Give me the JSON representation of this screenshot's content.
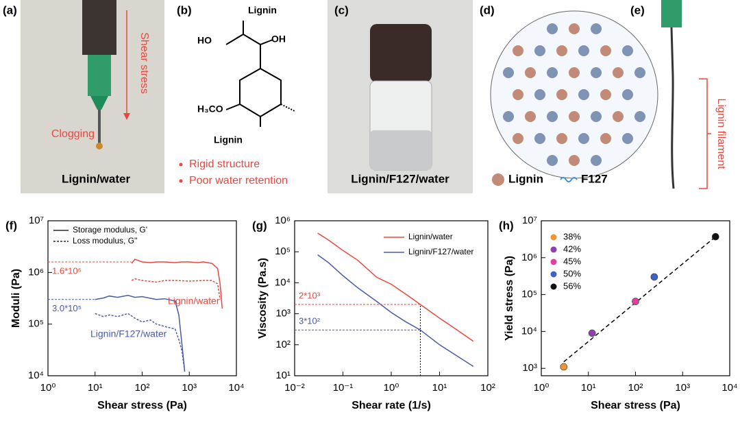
{
  "panels": {
    "a": {
      "label": "(a)",
      "arrow_text": "Shear stress",
      "note": "Clogging",
      "caption": "Lignin/water"
    },
    "b": {
      "label": "(b)",
      "groups": [
        "Lignin",
        "HO",
        "OH",
        "H₃CO",
        "Lignin"
      ],
      "bullets": [
        "Rigid structure",
        "Poor water retention"
      ]
    },
    "c": {
      "label": "(c)",
      "caption": "Lignin/F127/water"
    },
    "d": {
      "label": "(d)",
      "legend": [
        "Lignin",
        "F127"
      ]
    },
    "e": {
      "label": "(e)",
      "note": "Lignin filament"
    }
  },
  "chart_data": [
    {
      "type": "line",
      "panel": "(f)",
      "xlabel": "Shear stress (Pa)",
      "ylabel": "Moduli (Pa)",
      "log_x": true,
      "log_y": true,
      "xlim": [
        1,
        10000
      ],
      "ylim": [
        10000,
        10000000
      ],
      "xticks": [
        {
          "value": 1,
          "label": "10⁰"
        },
        {
          "value": 10,
          "label": "10¹"
        },
        {
          "value": 100,
          "label": "10²"
        },
        {
          "value": 1000,
          "label": "10³"
        },
        {
          "value": 10000,
          "label": "10⁴"
        }
      ],
      "yticks": [
        {
          "value": 10000,
          "label": "10⁴"
        },
        {
          "value": 100000,
          "label": "10⁵"
        },
        {
          "value": 1000000,
          "label": "10⁶"
        },
        {
          "value": 10000000,
          "label": "10⁷"
        }
      ],
      "legend": [
        {
          "name": "Storage modulus, G'",
          "style": "solid"
        },
        {
          "name": "Loss modulus, G''",
          "style": "dashed"
        }
      ],
      "annotations": [
        "Lignin/water",
        "Lignin/F127/water"
      ],
      "series": [
        {
          "color": "#e8473f",
          "style": "solid",
          "x": [
            60,
            70,
            100,
            150,
            200,
            300,
            500,
            700,
            1000,
            1500,
            2000,
            3000,
            4000,
            4500,
            5000
          ],
          "values": [
            1500000,
            1800000,
            1600000,
            1550000,
            1600000,
            1600000,
            1550000,
            1600000,
            1600000,
            1550000,
            1600000,
            1500000,
            1200000,
            600000,
            200000
          ]
        },
        {
          "color": "#e8473f",
          "style": "dashed",
          "x": [
            60,
            70,
            100,
            200,
            300,
            500,
            1000,
            2000,
            3000,
            4000,
            4500
          ],
          "values": [
            700000,
            750000,
            700000,
            650000,
            700000,
            700000,
            680000,
            700000,
            700000,
            600000,
            300000
          ]
        },
        {
          "color": "#4a5aa8",
          "style": "solid",
          "x": [
            10,
            15,
            20,
            30,
            50,
            70,
            100,
            200,
            300,
            500,
            600,
            700,
            800
          ],
          "values": [
            300000,
            320000,
            350000,
            330000,
            360000,
            330000,
            340000,
            300000,
            310000,
            280000,
            150000,
            40000,
            12000
          ]
        },
        {
          "color": "#4a5aa8",
          "style": "dashed",
          "x": [
            10,
            15,
            20,
            30,
            50,
            70,
            100,
            150,
            200,
            300,
            500,
            600,
            700,
            800
          ],
          "values": [
            160000,
            140000,
            150000,
            140000,
            160000,
            130000,
            110000,
            120000,
            100000,
            90000,
            80000,
            50000,
            30000,
            12000
          ]
        }
      ],
      "reference_lines": [
        {
          "value": 1600000,
          "label": "1.6*10⁶",
          "color": "#e8473f"
        },
        {
          "value": 300000,
          "label": "3.0*10⁵",
          "color": "#4a5aa8"
        }
      ]
    },
    {
      "type": "line",
      "panel": "(g)",
      "xlabel": "Shear rate (1/s)",
      "ylabel": "Viscosity (Pa.s)",
      "log_x": true,
      "log_y": true,
      "xlim": [
        0.01,
        100
      ],
      "ylim": [
        10,
        1000000
      ],
      "xticks": [
        {
          "value": 0.01,
          "label": "10⁻²"
        },
        {
          "value": 0.1,
          "label": "10⁻¹"
        },
        {
          "value": 1,
          "label": "10⁰"
        },
        {
          "value": 10,
          "label": "10¹"
        },
        {
          "value": 100,
          "label": "10²"
        }
      ],
      "yticks": [
        {
          "value": 10,
          "label": "10¹"
        },
        {
          "value": 100,
          "label": "10²"
        },
        {
          "value": 1000,
          "label": "10³"
        },
        {
          "value": 10000,
          "label": "10⁴"
        },
        {
          "value": 100000,
          "label": "10⁵"
        },
        {
          "value": 1000000,
          "label": "10⁶"
        }
      ],
      "series": [
        {
          "name": "Lignin/water",
          "color": "#e8473f",
          "style": "solid",
          "x": [
            0.03,
            0.05,
            0.1,
            0.2,
            0.5,
            1,
            2,
            4,
            10,
            20,
            50
          ],
          "values": [
            400000,
            240000,
            110000,
            54000,
            15000,
            9000,
            4300,
            2000,
            720,
            350,
            130
          ]
        },
        {
          "name": "Lignin/F127/water",
          "color": "#4a5aa8",
          "style": "solid",
          "x": [
            0.03,
            0.05,
            0.1,
            0.2,
            0.5,
            1,
            2,
            4,
            10,
            20,
            50
          ],
          "values": [
            80000,
            45000,
            17000,
            7000,
            2500,
            1100,
            550,
            300,
            100,
            50,
            20
          ]
        }
      ],
      "reference_lines": [
        {
          "value": 2000,
          "label": "2*10³",
          "color": "#e8473f"
        },
        {
          "value": 300,
          "label": "3*10²",
          "color": "#4a5aa8"
        }
      ],
      "vline": 4
    },
    {
      "type": "scatter",
      "panel": "(h)",
      "xlabel": "Shear stress (Pa)",
      "ylabel": "Yield stress (Pa)",
      "log_x": true,
      "log_y": true,
      "xlim": [
        1,
        10000
      ],
      "ylim": [
        630,
        10000000
      ],
      "xticks": [
        {
          "value": 1,
          "label": "10⁰"
        },
        {
          "value": 10,
          "label": "10¹"
        },
        {
          "value": 100,
          "label": "10²"
        },
        {
          "value": 1000,
          "label": "10³"
        },
        {
          "value": 10000,
          "label": "10⁴"
        }
      ],
      "yticks": [
        {
          "value": 1000,
          "label": "10³"
        },
        {
          "value": 10000,
          "label": "10⁴"
        },
        {
          "value": 100000,
          "label": "10⁵"
        },
        {
          "value": 1000000,
          "label": "10⁶"
        },
        {
          "value": 10000000,
          "label": "10⁷"
        }
      ],
      "series": [
        {
          "name": "38%",
          "color": "#f39232",
          "x": [
            3
          ],
          "values": [
            1100
          ]
        },
        {
          "name": "42%",
          "color": "#8e3fb0",
          "x": [
            12
          ],
          "values": [
            9000
          ]
        },
        {
          "name": "45%",
          "color": "#e0409a",
          "x": [
            100
          ],
          "values": [
            65000
          ]
        },
        {
          "name": "50%",
          "color": "#3f62c9",
          "x": [
            250
          ],
          "values": [
            300000
          ]
        },
        {
          "name": "56%",
          "color": "#111111",
          "x": [
            5000
          ],
          "values": [
            3700000
          ]
        }
      ],
      "fit": {
        "x": [
          3,
          5000
        ],
        "values": [
          1500,
          3700000
        ]
      }
    }
  ]
}
